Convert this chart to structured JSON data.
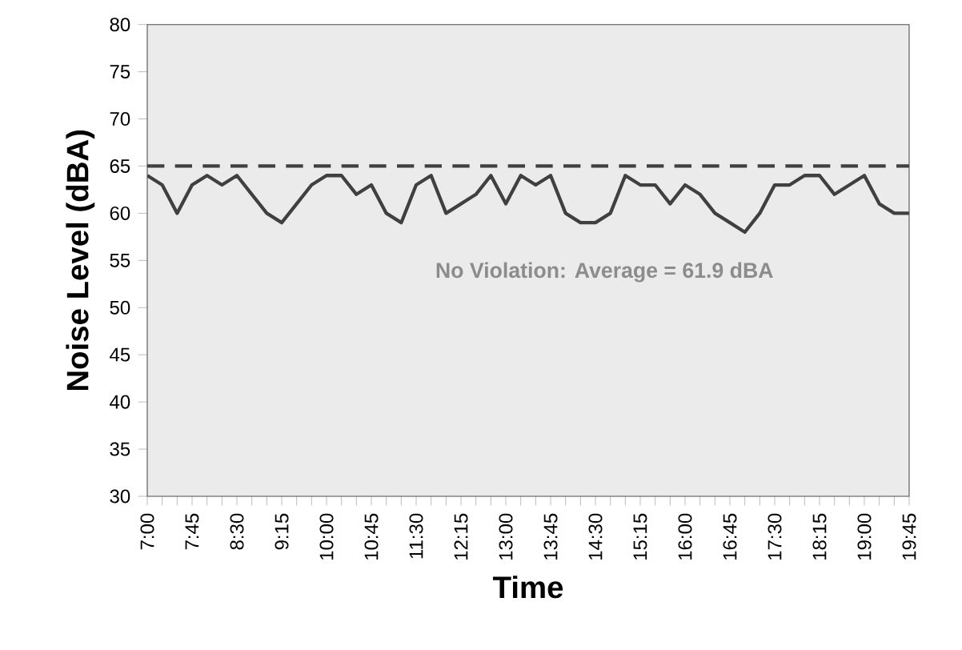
{
  "chart_data": {
    "type": "line",
    "xlabel": "Time",
    "ylabel": "Noise Level (dBA)",
    "categories": [
      "7:00",
      null,
      null,
      "7:45",
      null,
      null,
      "8:30",
      null,
      null,
      "9:15",
      null,
      null,
      "10:00",
      null,
      null,
      "10:45",
      null,
      null,
      "11:30",
      null,
      null,
      "12:15",
      null,
      null,
      "13:00",
      null,
      null,
      "13:45",
      null,
      null,
      "14:30",
      null,
      null,
      "15:15",
      null,
      null,
      "16:00",
      null,
      null,
      "16:45",
      null,
      null,
      "17:30",
      null,
      null,
      "18:15",
      null,
      null,
      "19:00",
      null,
      null,
      "19:45"
    ],
    "series": [
      {
        "color": "#404040",
        "values": [
          64,
          63,
          60,
          63,
          64,
          63,
          64,
          62,
          60,
          59,
          61,
          63,
          64,
          64,
          62,
          63,
          60,
          59,
          63,
          64,
          60,
          61,
          62,
          64,
          61,
          64,
          63,
          64,
          60,
          59,
          59,
          60,
          64,
          63,
          63,
          61,
          63,
          62,
          60,
          59,
          58,
          60,
          63,
          63,
          64,
          64,
          62,
          63,
          64,
          61,
          60,
          60
        ]
      }
    ],
    "ylim": [
      30,
      80
    ],
    "yticks": [
      30,
      35,
      40,
      45,
      50,
      55,
      60,
      65,
      70,
      75,
      80
    ],
    "ref_lines": [
      {
        "axis": "y",
        "value": 65,
        "color": "#404040",
        "line_style": "dashed"
      }
    ],
    "annotations": [
      "No Violation:  Average = 61.9 dBA"
    ],
    "grid": false,
    "marker": "none",
    "line_style": "solid"
  }
}
